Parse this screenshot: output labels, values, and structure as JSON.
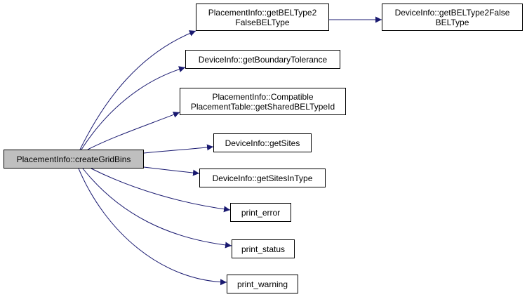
{
  "graph": {
    "root": {
      "label": "PlacementInfo::createGridBins"
    },
    "nodes": [
      {
        "id": "n1",
        "lines": [
          "PlacementInfo::getBELType2",
          "FalseBELType"
        ]
      },
      {
        "id": "n2",
        "lines": [
          "DeviceInfo::getBELType2False",
          "BELType"
        ]
      },
      {
        "id": "n3",
        "lines": [
          "DeviceInfo::getBoundaryTolerance"
        ]
      },
      {
        "id": "n4",
        "lines": [
          "PlacementInfo::Compatible",
          "PlacementTable::getSharedBELTypeId"
        ]
      },
      {
        "id": "n5",
        "lines": [
          "DeviceInfo::getSites"
        ]
      },
      {
        "id": "n6",
        "lines": [
          "DeviceInfo::getSitesInType"
        ]
      },
      {
        "id": "n7",
        "lines": [
          "print_error"
        ]
      },
      {
        "id": "n8",
        "lines": [
          "print_status"
        ]
      },
      {
        "id": "n9",
        "lines": [
          "print_warning"
        ]
      }
    ],
    "edges": [
      {
        "from": "root",
        "to": "n1"
      },
      {
        "from": "n1",
        "to": "n2"
      },
      {
        "from": "root",
        "to": "n3"
      },
      {
        "from": "root",
        "to": "n4"
      },
      {
        "from": "root",
        "to": "n5"
      },
      {
        "from": "root",
        "to": "n6"
      },
      {
        "from": "root",
        "to": "n7"
      },
      {
        "from": "root",
        "to": "n8"
      },
      {
        "from": "root",
        "to": "n9"
      }
    ],
    "colors": {
      "edge": "#191970",
      "border": "#000000",
      "root_fill": "#bfbfbf",
      "node_fill": "#ffffff"
    }
  }
}
